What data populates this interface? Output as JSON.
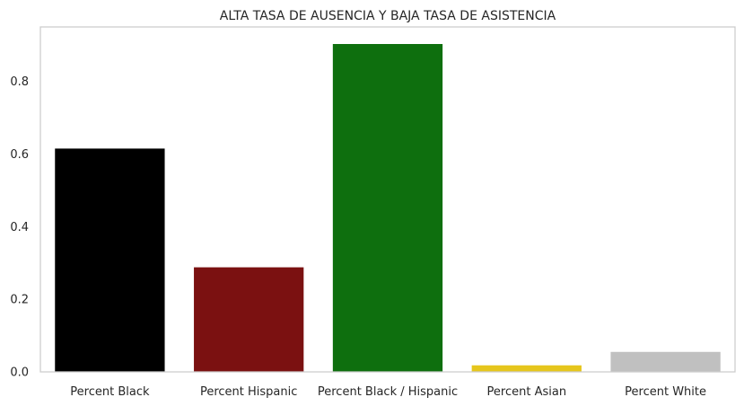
{
  "chart_data": {
    "type": "bar",
    "title": "ALTA TASA DE AUSENCIA Y BAJA TASA DE ASISTENCIA",
    "xlabel": "",
    "ylabel": "",
    "categories": [
      "Percent Black",
      "Percent Hispanic",
      "Percent Black / Hispanic",
      "Percent Asian",
      "Percent White"
    ],
    "values": [
      0.615,
      0.288,
      0.903,
      0.018,
      0.055
    ],
    "colors": [
      "#000000",
      "#7b1111",
      "#0e6f0e",
      "#e6c61c",
      "#c0c0c0"
    ],
    "ylim": [
      0,
      0.95
    ],
    "yticks": [
      0.0,
      0.2,
      0.4,
      0.6,
      0.8
    ],
    "ytick_labels": [
      "0.0",
      "0.2",
      "0.4",
      "0.6",
      "0.8"
    ],
    "grid": false,
    "legend": "none"
  }
}
